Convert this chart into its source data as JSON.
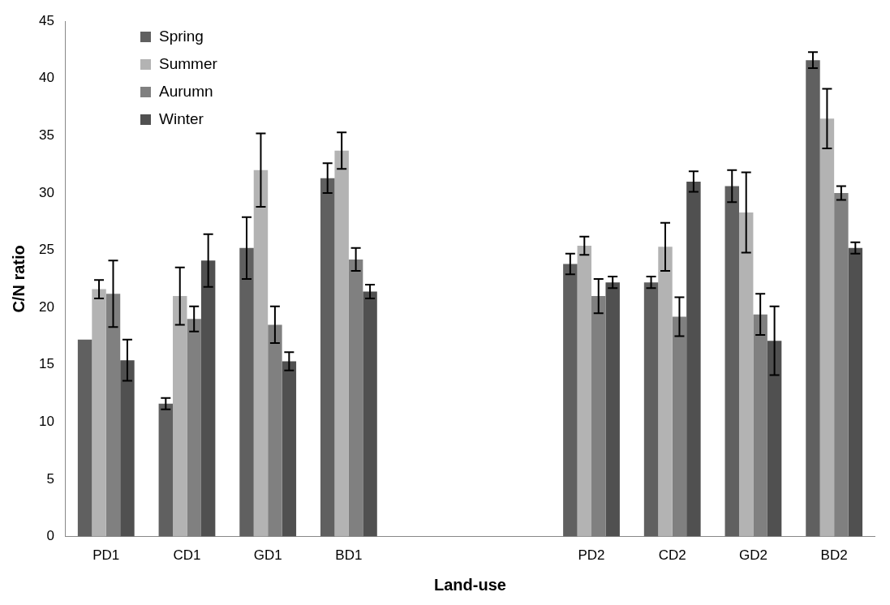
{
  "chart_data": {
    "type": "bar",
    "xlabel": "Land-use",
    "ylabel": "C/N ratio",
    "categories": [
      "PD1",
      "CD1",
      "GD1",
      "BD1",
      null,
      null,
      "PD2",
      "CD2",
      "GD2",
      "BD2"
    ],
    "series": [
      {
        "name": "Spring",
        "color": "#606060",
        "values": [
          17.2,
          11.6,
          25.2,
          31.3,
          null,
          null,
          23.8,
          22.2,
          30.6,
          41.6
        ],
        "errors": [
          null,
          0.5,
          2.7,
          1.3,
          null,
          null,
          0.9,
          0.5,
          1.4,
          0.7
        ]
      },
      {
        "name": "Summer",
        "color": "#b3b3b3",
        "values": [
          21.6,
          21.0,
          32.0,
          33.7,
          null,
          null,
          25.4,
          25.3,
          28.3,
          36.5
        ],
        "errors": [
          0.8,
          2.5,
          3.2,
          1.6,
          null,
          null,
          0.8,
          2.1,
          3.5,
          2.6
        ]
      },
      {
        "name": "Aurumn",
        "color": "#808080",
        "values": [
          21.2,
          19.0,
          18.5,
          24.2,
          null,
          null,
          21.0,
          19.2,
          19.4,
          30.0
        ],
        "errors": [
          2.9,
          1.1,
          1.6,
          1.0,
          null,
          null,
          1.5,
          1.7,
          1.8,
          0.6
        ]
      },
      {
        "name": "Winter",
        "color": "#505050",
        "values": [
          15.4,
          24.1,
          15.3,
          21.4,
          null,
          null,
          22.2,
          31.0,
          17.1,
          25.2
        ],
        "errors": [
          1.8,
          2.3,
          0.8,
          0.6,
          null,
          null,
          0.5,
          0.9,
          3.0,
          0.5
        ]
      }
    ],
    "ylim": [
      0,
      45
    ],
    "yticks": [
      0,
      5,
      10,
      15,
      20,
      25,
      30,
      35,
      40,
      45
    ],
    "grid": false,
    "legend": "top left"
  }
}
